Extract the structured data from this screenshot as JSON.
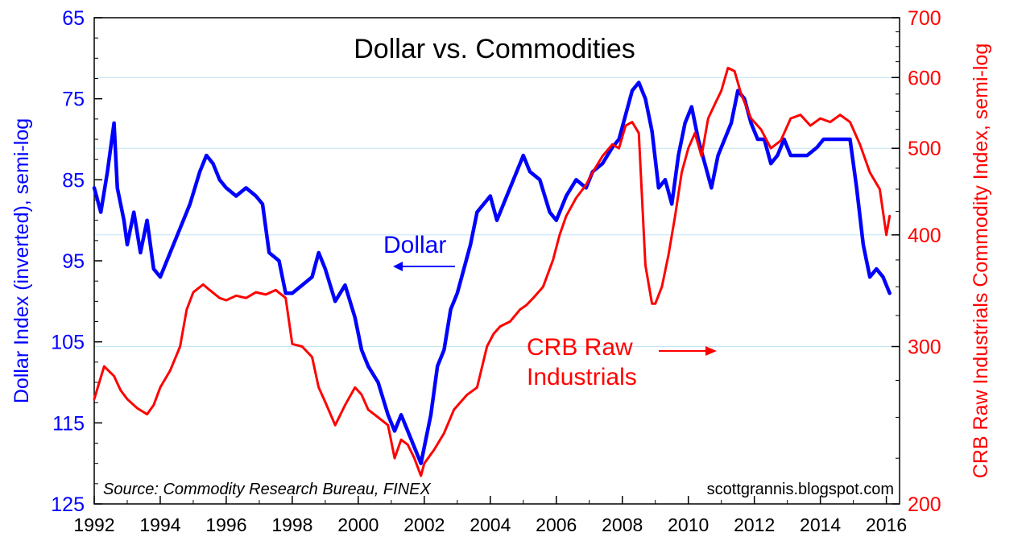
{
  "chart_data": {
    "type": "line",
    "title": "Dollar vs. Commodities",
    "source": "Source: Commodity Research Bureau, FINEX",
    "credit": "scottgrannis.blogspot.com",
    "xlabel": "",
    "x_ticks": [
      "1992",
      "1994",
      "1996",
      "1998",
      "2000",
      "2002",
      "2004",
      "2006",
      "2008",
      "2010",
      "2012",
      "2014",
      "2016"
    ],
    "xlim": [
      1992,
      2016.4
    ],
    "left_axis": {
      "label": "Dollar Index (inverted), semi-log",
      "ticks": [
        "65",
        "75",
        "85",
        "95",
        "105",
        "115",
        "125"
      ],
      "ylim": [
        65,
        125
      ],
      "inverted": true,
      "color": "#0000ff"
    },
    "right_axis": {
      "label": "CRB Raw Industrials Commodity Index, semi-log",
      "ticks": [
        "200",
        "300",
        "400",
        "500",
        "600",
        "700"
      ],
      "ylim": [
        200,
        700
      ],
      "scale": "log",
      "color": "#ff0000"
    },
    "annotations": {
      "dollar": "Dollar",
      "crb_line1": "CRB Raw",
      "crb_line2": "Industrials"
    },
    "series": [
      {
        "name": "Dollar",
        "axis": "left",
        "color": "#0000ff",
        "x": [
          1992.0,
          1992.2,
          1992.4,
          1992.6,
          1992.7,
          1992.9,
          1993.0,
          1993.2,
          1993.4,
          1993.6,
          1993.8,
          1994.0,
          1994.3,
          1994.6,
          1994.9,
          1995.2,
          1995.4,
          1995.6,
          1995.8,
          1996.0,
          1996.3,
          1996.6,
          1996.9,
          1997.1,
          1997.3,
          1997.6,
          1997.8,
          1998.0,
          1998.3,
          1998.6,
          1998.8,
          1999.0,
          1999.3,
          1999.6,
          1999.9,
          2000.1,
          2000.3,
          2000.6,
          2000.9,
          2001.1,
          2001.3,
          2001.5,
          2001.7,
          2001.9,
          2002.0,
          2002.2,
          2002.4,
          2002.6,
          2002.8,
          2003.0,
          2003.2,
          2003.4,
          2003.6,
          2003.8,
          2004.0,
          2004.2,
          2004.4,
          2004.6,
          2004.8,
          2005.0,
          2005.2,
          2005.5,
          2005.8,
          2006.0,
          2006.3,
          2006.6,
          2006.9,
          2007.1,
          2007.4,
          2007.7,
          2007.9,
          2008.1,
          2008.3,
          2008.5,
          2008.7,
          2008.9,
          2009.1,
          2009.3,
          2009.5,
          2009.7,
          2009.9,
          2010.1,
          2010.3,
          2010.5,
          2010.7,
          2010.9,
          2011.1,
          2011.3,
          2011.5,
          2011.7,
          2011.9,
          2012.1,
          2012.3,
          2012.5,
          2012.7,
          2012.9,
          2013.1,
          2013.3,
          2013.6,
          2013.9,
          2014.1,
          2014.3,
          2014.5,
          2014.7,
          2014.9,
          2015.1,
          2015.3,
          2015.5,
          2015.7,
          2015.9,
          2016.1
        ],
        "values": [
          86,
          89,
          84,
          78,
          86,
          90,
          93,
          89,
          94,
          90,
          96,
          97,
          94,
          91,
          88,
          84,
          82,
          83,
          85,
          86,
          87,
          86,
          87,
          88,
          94,
          95,
          99,
          99,
          98,
          97,
          94,
          96,
          100,
          98,
          102,
          106,
          108,
          110,
          114,
          116,
          114,
          116,
          118,
          120,
          118,
          114,
          108,
          106,
          101,
          99,
          96,
          93,
          89,
          88,
          87,
          90,
          88,
          86,
          84,
          82,
          84,
          85,
          89,
          90,
          87,
          85,
          86,
          84,
          83,
          81,
          80,
          77,
          74,
          73,
          75,
          79,
          86,
          85,
          88,
          82,
          78,
          76,
          80,
          83,
          86,
          82,
          80,
          78,
          74,
          75,
          78,
          80,
          80,
          83,
          82,
          80,
          82,
          82,
          82,
          81,
          80,
          80,
          80,
          80,
          80,
          86,
          93,
          97,
          96,
          97,
          99
        ]
      },
      {
        "name": "CRB Raw Industrials",
        "axis": "right",
        "color": "#ff0000",
        "x": [
          1992.0,
          1992.3,
          1992.6,
          1992.8,
          1993.0,
          1993.3,
          1993.6,
          1993.8,
          1994.0,
          1994.3,
          1994.6,
          1994.8,
          1995.0,
          1995.3,
          1995.5,
          1995.8,
          1996.0,
          1996.3,
          1996.6,
          1996.9,
          1997.2,
          1997.5,
          1997.8,
          1998.0,
          1998.3,
          1998.6,
          1998.8,
          1999.0,
          1999.3,
          1999.6,
          1999.9,
          2000.1,
          2000.3,
          2000.6,
          2000.9,
          2001.1,
          2001.3,
          2001.5,
          2001.7,
          2001.9,
          2002.0,
          2002.3,
          2002.6,
          2002.9,
          2003.1,
          2003.3,
          2003.6,
          2003.9,
          2004.1,
          2004.3,
          2004.6,
          2004.9,
          2005.1,
          2005.3,
          2005.6,
          2005.9,
          2006.1,
          2006.3,
          2006.6,
          2006.9,
          2007.1,
          2007.4,
          2007.7,
          2007.9,
          2008.1,
          2008.3,
          2008.5,
          2008.7,
          2008.9,
          2009.0,
          2009.2,
          2009.4,
          2009.6,
          2009.8,
          2010.0,
          2010.2,
          2010.4,
          2010.6,
          2010.8,
          2011.0,
          2011.2,
          2011.4,
          2011.6,
          2011.9,
          2012.2,
          2012.5,
          2012.8,
          2013.1,
          2013.4,
          2013.7,
          2014.0,
          2014.3,
          2014.6,
          2014.9,
          2015.2,
          2015.5,
          2015.8,
          2016.0,
          2016.1
        ],
        "values": [
          262,
          285,
          278,
          268,
          262,
          256,
          252,
          258,
          270,
          282,
          300,
          330,
          345,
          352,
          347,
          340,
          338,
          342,
          340,
          345,
          343,
          347,
          340,
          302,
          300,
          292,
          270,
          260,
          245,
          258,
          270,
          265,
          255,
          250,
          245,
          225,
          236,
          233,
          225,
          215,
          222,
          230,
          240,
          255,
          260,
          265,
          270,
          300,
          310,
          316,
          320,
          330,
          334,
          340,
          350,
          375,
          400,
          420,
          440,
          455,
          470,
          490,
          505,
          500,
          530,
          535,
          520,
          370,
          335,
          335,
          350,
          380,
          420,
          470,
          500,
          520,
          490,
          540,
          560,
          580,
          615,
          610,
          575,
          540,
          525,
          500,
          510,
          540,
          545,
          530,
          540,
          535,
          545,
          535,
          505,
          470,
          450,
          400,
          420
        ]
      }
    ]
  }
}
